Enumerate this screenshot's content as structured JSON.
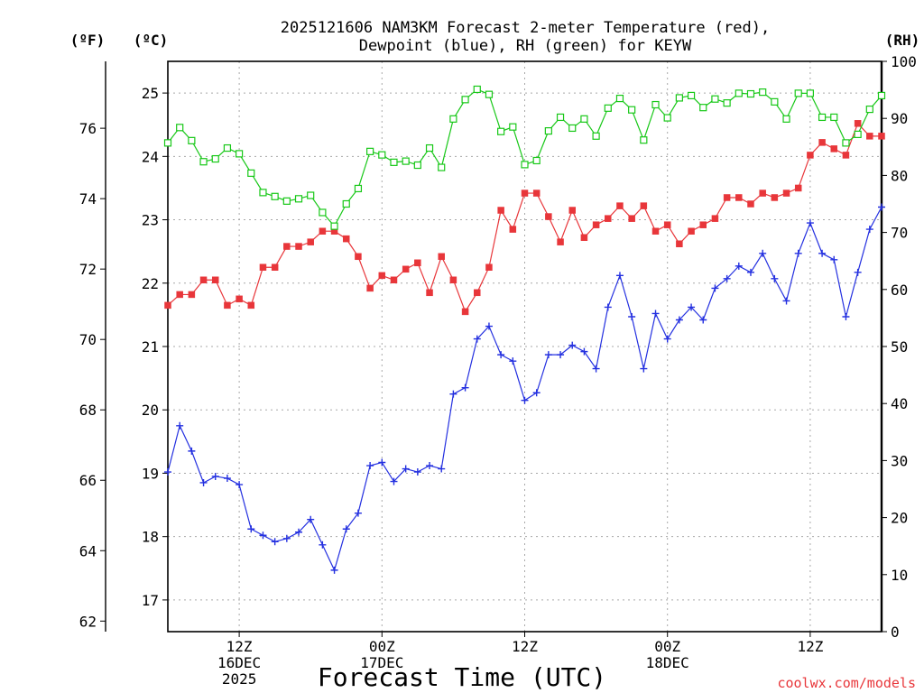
{
  "chart_data": {
    "type": "line",
    "title_line1": "2025121606 NAM3KM Forecast 2-meter Temperature (red),",
    "title_line2": "Dewpoint (blue), RH (green) for KEYW",
    "xlabel": "Forecast Time (UTC)",
    "credit": "coolwx.com/models",
    "unit_labels": {
      "fahrenheit": "(ºF)",
      "celsius": "(ºC)",
      "rh": "(RH)"
    },
    "x_ticks": [
      {
        "hour": 6,
        "lines": [
          "12Z",
          "16DEC",
          "2025"
        ]
      },
      {
        "hour": 18,
        "lines": [
          "00Z",
          "17DEC"
        ]
      },
      {
        "hour": 30,
        "lines": [
          "12Z"
        ]
      },
      {
        "hour": 42,
        "lines": [
          "00Z",
          "18DEC"
        ]
      },
      {
        "hour": 54,
        "lines": [
          "12Z"
        ]
      }
    ],
    "x_range": [
      0,
      60
    ],
    "y_left_celsius": {
      "range": [
        16.5,
        25.5
      ],
      "ticks": [
        17,
        18,
        19,
        20,
        21,
        22,
        23,
        24,
        25
      ]
    },
    "y_far_left_fahrenheit": {
      "ticks": [
        62,
        64,
        66,
        68,
        70,
        72,
        74,
        76
      ]
    },
    "y_right_rh": {
      "range": [
        0,
        100
      ],
      "ticks": [
        0,
        10,
        20,
        30,
        40,
        50,
        60,
        70,
        80,
        90,
        100
      ]
    },
    "grid": true,
    "colors": {
      "temperature": "#e8363a",
      "dewpoint": "#2430e0",
      "rh": "#18c818"
    },
    "series": [
      {
        "name": "Temperature",
        "units": "C",
        "marker": "filled-square",
        "x": [
          0,
          1,
          2,
          3,
          4,
          5,
          6,
          7,
          8,
          9,
          10,
          11,
          12,
          13,
          14,
          15,
          16,
          17,
          18,
          19,
          20,
          21,
          22,
          23,
          24,
          25,
          26,
          27,
          28,
          29,
          30,
          31,
          32,
          33,
          34,
          35,
          36,
          37,
          38,
          39,
          40,
          41,
          42,
          43,
          44,
          45,
          46,
          47,
          48,
          49,
          50,
          51,
          52,
          53,
          54,
          55,
          56,
          57,
          58,
          59,
          60
        ],
        "values": [
          21.65,
          21.82,
          21.82,
          22.05,
          22.05,
          21.65,
          21.75,
          21.65,
          22.25,
          22.25,
          22.58,
          22.58,
          22.65,
          22.82,
          22.82,
          22.7,
          22.42,
          21.92,
          22.12,
          22.05,
          22.22,
          22.32,
          21.85,
          22.42,
          22.05,
          21.55,
          21.85,
          22.25,
          23.15,
          22.85,
          23.42,
          23.42,
          23.05,
          22.65,
          23.15,
          22.72,
          22.92,
          23.02,
          23.22,
          23.02,
          23.22,
          22.82,
          22.92,
          22.62,
          22.82,
          22.92,
          23.02,
          23.35,
          23.35,
          23.25,
          23.42,
          23.35,
          23.42,
          23.5,
          24.02,
          24.22,
          24.12,
          24.02,
          24.52,
          24.32,
          24.32
        ]
      },
      {
        "name": "Dewpoint",
        "units": "C",
        "marker": "plus",
        "x": [
          0,
          1,
          2,
          3,
          4,
          5,
          6,
          7,
          8,
          9,
          10,
          11,
          12,
          13,
          14,
          15,
          16,
          17,
          18,
          19,
          20,
          21,
          22,
          23,
          24,
          25,
          26,
          27,
          28,
          29,
          30,
          31,
          32,
          33,
          34,
          35,
          36,
          37,
          38,
          39,
          40,
          41,
          42,
          43,
          44,
          45,
          46,
          47,
          48,
          49,
          50,
          51,
          52,
          53,
          54,
          55,
          56,
          57,
          58,
          59,
          60
        ],
        "values": [
          19.02,
          19.75,
          19.35,
          18.85,
          18.95,
          18.92,
          18.82,
          18.12,
          18.02,
          17.92,
          17.97,
          18.07,
          18.27,
          17.87,
          17.47,
          18.12,
          18.37,
          19.12,
          19.17,
          18.87,
          19.07,
          19.02,
          19.12,
          19.07,
          20.25,
          20.35,
          21.12,
          21.32,
          20.87,
          20.77,
          20.15,
          20.27,
          20.87,
          20.87,
          21.02,
          20.92,
          20.65,
          21.62,
          22.12,
          21.47,
          20.65,
          21.52,
          21.12,
          21.42,
          21.62,
          21.42,
          21.92,
          22.07,
          22.27,
          22.17,
          22.47,
          22.07,
          21.72,
          22.47,
          22.95,
          22.47,
          22.37,
          21.47,
          22.17,
          22.85,
          23.2
        ]
      },
      {
        "name": "RH",
        "units": "%",
        "marker": "open-square",
        "x": [
          0,
          1,
          2,
          3,
          4,
          5,
          6,
          7,
          8,
          9,
          10,
          11,
          12,
          13,
          14,
          15,
          16,
          17,
          18,
          19,
          20,
          21,
          22,
          23,
          24,
          25,
          26,
          27,
          28,
          29,
          30,
          31,
          32,
          33,
          34,
          35,
          36,
          37,
          38,
          39,
          40,
          41,
          42,
          43,
          44,
          45,
          46,
          47,
          48,
          49,
          50,
          51,
          52,
          53,
          54,
          55,
          56,
          57,
          58,
          59,
          60
        ],
        "values": [
          85.7,
          88.4,
          86.1,
          82.4,
          82.9,
          84.8,
          83.8,
          80.4,
          77.0,
          76.3,
          75.5,
          75.9,
          76.5,
          73.5,
          71.1,
          75.0,
          77.7,
          84.2,
          83.6,
          82.3,
          82.5,
          81.8,
          84.8,
          81.4,
          89.9,
          93.3,
          95.1,
          94.2,
          87.7,
          88.5,
          81.9,
          82.6,
          87.8,
          90.2,
          88.3,
          89.9,
          86.9,
          91.8,
          93.5,
          91.5,
          86.2,
          92.4,
          90.1,
          93.6,
          94.0,
          91.9,
          93.4,
          92.7,
          94.4,
          94.3,
          94.6,
          92.9,
          89.9,
          94.4,
          94.4,
          90.2,
          90.2,
          85.7,
          87.2,
          91.6,
          94.0
        ]
      }
    ]
  }
}
